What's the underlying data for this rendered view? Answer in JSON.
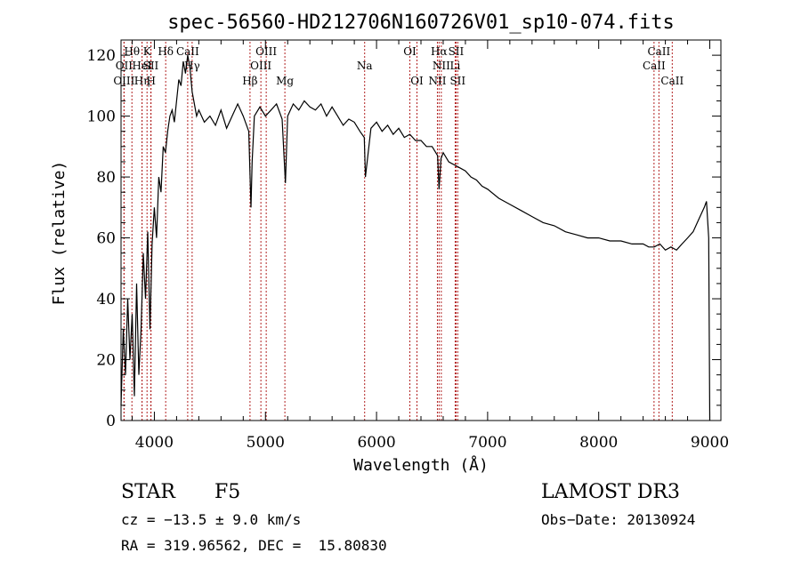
{
  "chart_data": {
    "type": "line",
    "title": "spec-56560-HD212706N160726V01_sp10-074.fits",
    "xlabel": "Wavelength (Å)",
    "ylabel": "Flux (relative)",
    "xlim": [
      3700,
      9100
    ],
    "ylim": [
      0,
      125
    ],
    "x_ticks": [
      4000,
      5000,
      6000,
      7000,
      8000,
      9000
    ],
    "y_ticks": [
      0,
      20,
      40,
      60,
      80,
      100,
      120
    ],
    "grid": false,
    "line_color": "#000000",
    "marker_color": "#b22222",
    "series": [
      {
        "x": [
          3700,
          3720,
          3740,
          3760,
          3780,
          3800,
          3820,
          3840,
          3860,
          3880,
          3900,
          3920,
          3940,
          3960,
          3980,
          4000,
          4020,
          4040,
          4060,
          4080,
          4100,
          4120,
          4140,
          4160,
          4180,
          4200,
          4220,
          4240,
          4260,
          4280,
          4300,
          4320,
          4340,
          4360,
          4380,
          4400,
          4450,
          4500,
          4550,
          4600,
          4650,
          4700,
          4750,
          4800,
          4850,
          4870,
          4880,
          4900,
          4950,
          5000,
          5050,
          5100,
          5150,
          5180,
          5200,
          5250,
          5300,
          5350,
          5400,
          5450,
          5500,
          5550,
          5600,
          5650,
          5700,
          5750,
          5800,
          5850,
          5890,
          5900,
          5950,
          6000,
          6050,
          6100,
          6150,
          6200,
          6250,
          6300,
          6350,
          6400,
          6450,
          6500,
          6550,
          6563,
          6580,
          6600,
          6650,
          6700,
          6750,
          6800,
          6850,
          6900,
          6950,
          7000,
          7100,
          7200,
          7300,
          7400,
          7500,
          7600,
          7700,
          7800,
          7900,
          8000,
          8100,
          8200,
          8300,
          8400,
          8450,
          8500,
          8550,
          8600,
          8650,
          8700,
          8750,
          8800,
          8850,
          8900,
          8950,
          8970,
          8990,
          9000
        ],
        "y": [
          5,
          30,
          15,
          40,
          20,
          35,
          8,
          45,
          15,
          30,
          55,
          40,
          62,
          30,
          58,
          70,
          60,
          80,
          75,
          90,
          88,
          95,
          100,
          102,
          98,
          105,
          112,
          110,
          118,
          114,
          120,
          116,
          108,
          104,
          100,
          102,
          98,
          100,
          97,
          102,
          96,
          100,
          104,
          100,
          95,
          70,
          85,
          100,
          103,
          100,
          102,
          104,
          99,
          78,
          100,
          104,
          102,
          105,
          103,
          102,
          104,
          100,
          103,
          100,
          97,
          99,
          98,
          95,
          93,
          80,
          96,
          98,
          95,
          97,
          94,
          96,
          93,
          94,
          92,
          92,
          90,
          90,
          87,
          76,
          86,
          88,
          85,
          84,
          83,
          82,
          80,
          79,
          77,
          76,
          73,
          71,
          69,
          67,
          65,
          64,
          62,
          61,
          60,
          60,
          59,
          59,
          58,
          58,
          57,
          57,
          58,
          56,
          57,
          56,
          58,
          60,
          62,
          66,
          70,
          72,
          60,
          0
        ]
      }
    ],
    "line_markers": [
      {
        "x": 3798,
        "label": "Hθ",
        "row": 1
      },
      {
        "x": 3727,
        "label": "OII",
        "row": 2
      },
      {
        "x": 3727,
        "label": "OIII",
        "row": 3
      },
      {
        "x": 3889,
        "label": "Hη",
        "row": 3
      },
      {
        "x": 3934,
        "label": "K",
        "row": 1
      },
      {
        "x": 3889,
        "label": "HeI",
        "row": 2
      },
      {
        "x": 3968,
        "label": "SII",
        "row": 2
      },
      {
        "x": 3970,
        "label": "H",
        "row": 3
      },
      {
        "x": 4102,
        "label": "Hδ",
        "row": 1
      },
      {
        "x": 4300,
        "label": "CaII",
        "row": 1
      },
      {
        "x": 4340,
        "label": "Hγ",
        "row": 2
      },
      {
        "x": 4861,
        "label": "Hβ",
        "row": 3
      },
      {
        "x": 5007,
        "label": "OIII",
        "row": 1
      },
      {
        "x": 4959,
        "label": "OIII",
        "row": 2
      },
      {
        "x": 5175,
        "label": "Mg",
        "row": 3
      },
      {
        "x": 5893,
        "label": "Na",
        "row": 2
      },
      {
        "x": 6300,
        "label": "OI",
        "row": 1
      },
      {
        "x": 6364,
        "label": "OI",
        "row": 3
      },
      {
        "x": 6563,
        "label": "Hα",
        "row": 1
      },
      {
        "x": 6583,
        "label": "NII",
        "row": 2
      },
      {
        "x": 6548,
        "label": "NII",
        "row": 3
      },
      {
        "x": 6716,
        "label": "SII",
        "row": 1
      },
      {
        "x": 6708,
        "label": "Li",
        "row": 2
      },
      {
        "x": 6731,
        "label": "SII",
        "row": 3
      },
      {
        "x": 8542,
        "label": "CaII",
        "row": 1
      },
      {
        "x": 8498,
        "label": "CaII",
        "row": 2
      },
      {
        "x": 8662,
        "label": "CaII",
        "row": 3
      }
    ]
  },
  "info": {
    "object_class": "STAR",
    "subclass": "F5",
    "survey": "LAMOST DR3",
    "cz": "cz = −13.5 ± 9.0 km/s",
    "obs_date": "Obs−Date: 20130924",
    "coords": "RA = 319.96562, DEC =  15.80830"
  }
}
